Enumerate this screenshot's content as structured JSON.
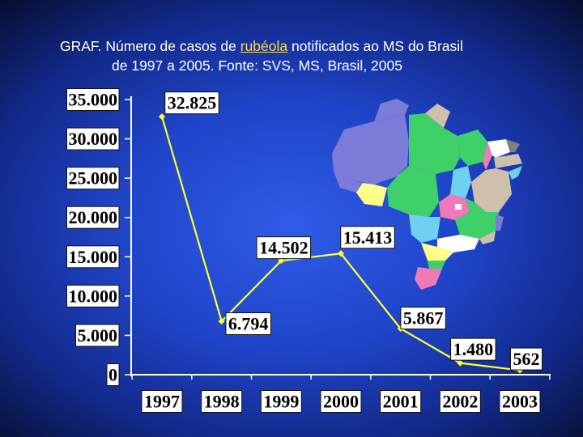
{
  "title": {
    "line1_prefix": "GRAF. Número de casos de ",
    "line1_highlight": "rubéola",
    "line1_suffix": " notificados ao MS do Brasil",
    "line2": "de 1997 a 2005. Fonte: SVS, MS, Brasil, 2005"
  },
  "colors": {
    "line": "#ffff33",
    "marker": "#ffff33",
    "axis": "#ffffff",
    "highlight": "#ffd84a"
  },
  "map": {
    "icon": "brazil-states-map",
    "palette": [
      "#7b7bd8",
      "#3fd06a",
      "#cfc0ad",
      "#ffff88",
      "#f07ab8",
      "#6fd0f0",
      "#ffffff",
      "#808080"
    ]
  },
  "chart_data": {
    "type": "line",
    "title": "GRAF. Número de casos de rubéola notificados ao MS do Brasil de 1997 a 2005. Fonte: SVS, MS, Brasil, 2005",
    "xlabel": "",
    "ylabel": "",
    "categories": [
      "1997",
      "1998",
      "1999",
      "2000",
      "2001",
      "2002",
      "2003"
    ],
    "series": [
      {
        "values": [
          32825,
          6794,
          14502,
          15413,
          5867,
          1480,
          562
        ],
        "labels": [
          "32.825",
          "6.794",
          "14.502",
          "15.413",
          "5.867",
          "1.480",
          "562"
        ]
      }
    ],
    "ylim": [
      0,
      35000
    ],
    "yticks": [
      0,
      5000,
      10000,
      15000,
      20000,
      25000,
      30000,
      35000
    ],
    "ytick_labels": [
      "0",
      "5.000",
      "10.000",
      "15.000",
      "20.000",
      "25.000",
      "30.000",
      "35.000"
    ],
    "grid": false,
    "legend": "none"
  }
}
